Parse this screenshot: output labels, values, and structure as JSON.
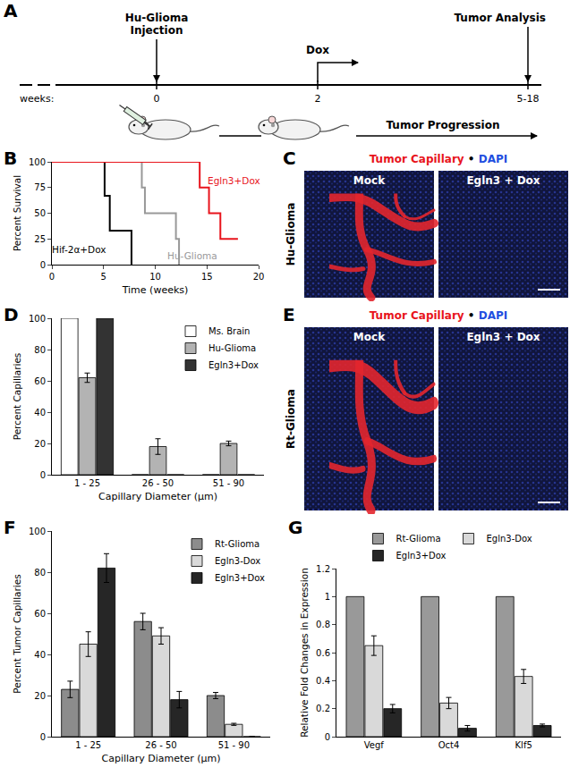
{
  "chart_data": [
    {
      "panel": "B",
      "type": "line",
      "line_style": "step",
      "x_label": "Time (weeks)",
      "y_label": "Percent Survival",
      "xlim": [
        0,
        20
      ],
      "xticks": [
        0,
        5,
        10,
        15,
        20
      ],
      "ylim": [
        0,
        100
      ],
      "yticks": [
        0,
        25,
        50,
        75,
        100
      ],
      "grid": false,
      "series": [
        {
          "name": "Hif-2α+Dox",
          "color": "#000000",
          "x": [
            0,
            5.1,
            5.6,
            7.7
          ],
          "values": [
            100,
            67,
            33,
            0
          ]
        },
        {
          "name": "Hu-Glioma",
          "color": "#999999",
          "x": [
            0,
            8.7,
            9.0,
            12.0,
            12.3
          ],
          "values": [
            100,
            75,
            50,
            25,
            0
          ]
        },
        {
          "name": "Egln3+Dox",
          "color": "#e8141c",
          "x": [
            0,
            14.3,
            15.2,
            16.3,
            18
          ],
          "values": [
            100,
            75,
            50,
            25,
            25
          ]
        }
      ]
    },
    {
      "panel": "D",
      "type": "bar",
      "x_label": "Capillary Diameter (µm)",
      "y_label": "Percent Capillaries",
      "categories": [
        "1 - 25",
        "26 - 50",
        "51 - 90"
      ],
      "ylim": [
        0,
        100
      ],
      "yticks": [
        0,
        20,
        40,
        60,
        80,
        100
      ],
      "grid": false,
      "legend": "top-right",
      "series": [
        {
          "name": "Ms. Brain",
          "color": "#ffffff",
          "values": [
            100,
            0,
            0
          ]
        },
        {
          "name": "Hu-Glioma",
          "color": "#b3b3b3",
          "values": [
            62,
            18,
            20
          ],
          "errors": [
            3,
            5,
            1.5
          ]
        },
        {
          "name": "Egln3+Dox",
          "color": "#333333",
          "values": [
            100,
            0,
            0
          ]
        }
      ]
    },
    {
      "panel": "F",
      "type": "bar",
      "x_label": "Capillary Diameter (µm)",
      "y_label": "Percent Tumor Capillaries",
      "categories": [
        "1 - 25",
        "26 - 50",
        "51 - 90"
      ],
      "ylim": [
        0,
        100
      ],
      "yticks": [
        0,
        20,
        40,
        60,
        80,
        100
      ],
      "grid": false,
      "legend": "top-right",
      "series": [
        {
          "name": "Rt-Glioma",
          "color": "#8c8c8c",
          "values": [
            23,
            56,
            20
          ],
          "errors": [
            4,
            4,
            1.5
          ]
        },
        {
          "name": "Egln3-Dox",
          "color": "#d9d9d9",
          "values": [
            45,
            49,
            6
          ],
          "errors": [
            6,
            4,
            0.5
          ]
        },
        {
          "name": "Egln3+Dox",
          "color": "#262626",
          "values": [
            82,
            18,
            0
          ],
          "errors": [
            7,
            4,
            0
          ]
        }
      ]
    },
    {
      "panel": "G",
      "type": "bar",
      "y_label": "Relative Fold Changes in Expression",
      "categories": [
        "Vegf",
        "Oct4",
        "Klf5"
      ],
      "ylim": [
        0,
        1.2
      ],
      "yticks": [
        0,
        0.2,
        0.4,
        0.6,
        0.8,
        1,
        1.2
      ],
      "grid": false,
      "legend": "top",
      "series": [
        {
          "name": "Rt-Glioma",
          "color": "#999999",
          "values": [
            1,
            1,
            1
          ]
        },
        {
          "name": "Egln3-Dox",
          "color": "#d9d9d9",
          "values": [
            0.65,
            0.24,
            0.43
          ],
          "errors": [
            0.07,
            0.04,
            0.05
          ]
        },
        {
          "name": "Egln3+Dox",
          "color": "#262626",
          "values": [
            0.2,
            0.06,
            0.08
          ],
          "errors": [
            0.03,
            0.02,
            0.01
          ]
        }
      ]
    }
  ],
  "timeline": {
    "panel": "A",
    "axis_label": "weeks:",
    "phase": "Tumor Progression",
    "events": [
      {
        "label": [
          "Hu-Glioma",
          "Injection"
        ],
        "week": "0"
      },
      {
        "label": [
          "Dox"
        ],
        "week": "2"
      },
      {
        "label": [
          "Tumor Analysis"
        ],
        "week": "5-18"
      }
    ]
  },
  "images": [
    {
      "panel": "C",
      "stains": [
        {
          "name": "Tumor Capillary",
          "color": "#e8141c"
        },
        {
          "name": "DAPI",
          "color": "#1f4fe0"
        }
      ],
      "separator": "•",
      "row_label": "Hu-Glioma",
      "conditions": [
        "Mock",
        "Egln3 + Dox"
      ]
    },
    {
      "panel": "E",
      "stains": [
        {
          "name": "Tumor Capillary",
          "color": "#e8141c"
        },
        {
          "name": "DAPI",
          "color": "#1f4fe0"
        }
      ],
      "separator": "•",
      "row_label": "Rt-Glioma",
      "conditions": [
        "Mock",
        "Egln3 + Dox"
      ]
    }
  ]
}
